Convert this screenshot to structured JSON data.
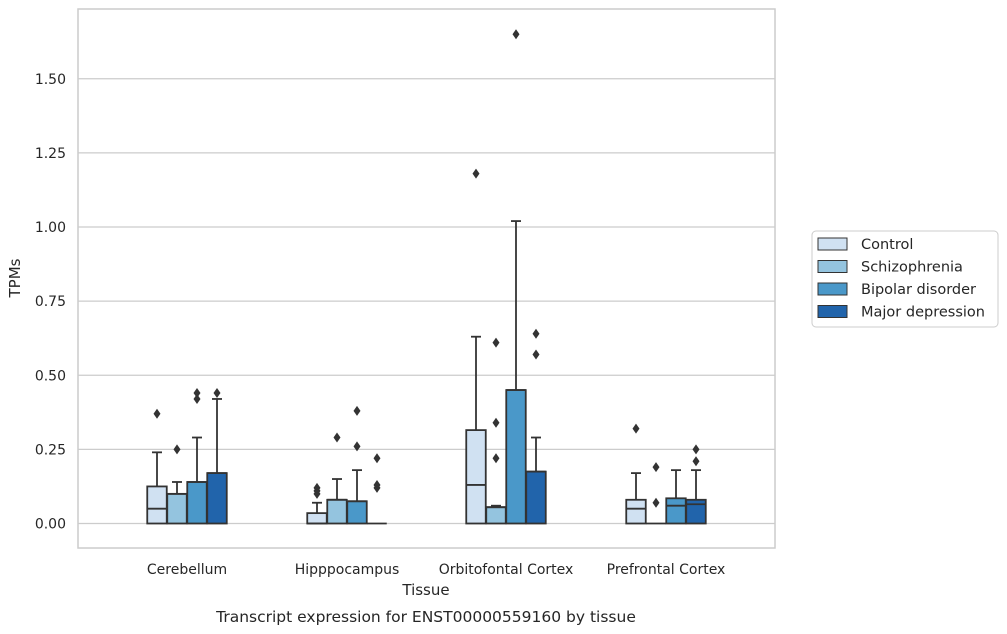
{
  "chart_data": {
    "type": "box",
    "title": "",
    "caption": "Transcript expression for ENST00000559160 by tissue",
    "xlabel": "Tissue",
    "ylabel": "TPMs",
    "ylim": [
      -0.08,
      1.73
    ],
    "yticks": [
      0.0,
      0.25,
      0.5,
      0.75,
      1.0,
      1.25,
      1.5
    ],
    "ytick_labels": [
      "0.00",
      "0.25",
      "0.50",
      "0.75",
      "1.00",
      "1.25",
      "1.50"
    ],
    "grid": "horizontal",
    "legend_position": "right",
    "categories": [
      "Cerebellum",
      "Hipppocampus",
      "Orbitofontal Cortex",
      "Prefrontal Cortex"
    ],
    "series": [
      {
        "name": "Control",
        "color": "#d0e1f2",
        "boxes": [
          {
            "q1": 0.0,
            "median": 0.05,
            "q3": 0.125,
            "whislo": 0.0,
            "whishi": 0.24,
            "fliers": [
              0.37
            ]
          },
          {
            "q1": 0.0,
            "median": 0.0,
            "q3": 0.035,
            "whislo": 0.0,
            "whishi": 0.07,
            "fliers": [
              0.1,
              0.11,
              0.12
            ]
          },
          {
            "q1": 0.0,
            "median": 0.13,
            "q3": 0.315,
            "whislo": 0.0,
            "whishi": 0.63,
            "fliers": [
              1.18
            ]
          },
          {
            "q1": 0.0,
            "median": 0.05,
            "q3": 0.08,
            "whislo": 0.0,
            "whishi": 0.17,
            "fliers": [
              0.32
            ]
          }
        ]
      },
      {
        "name": "Schizophrenia",
        "color": "#94c4df",
        "boxes": [
          {
            "q1": 0.0,
            "median": 0.1,
            "q3": 0.1,
            "whislo": 0.0,
            "whishi": 0.14,
            "fliers": [
              0.25
            ]
          },
          {
            "q1": 0.0,
            "median": 0.08,
            "q3": 0.08,
            "whislo": 0.0,
            "whishi": 0.15,
            "fliers": [
              0.29
            ]
          },
          {
            "q1": 0.0,
            "median": 0.055,
            "q3": 0.055,
            "whislo": 0.0,
            "whishi": 0.06,
            "fliers": [
              0.22,
              0.34,
              0.61
            ]
          },
          {
            "q1": 0.0,
            "median": 0.0,
            "q3": 0.0,
            "whislo": 0.0,
            "whishi": 0.0,
            "fliers": [
              0.07,
              0.19
            ]
          }
        ]
      },
      {
        "name": "Bipolar disorder",
        "color": "#4a98c9",
        "boxes": [
          {
            "q1": 0.0,
            "median": 0.14,
            "q3": 0.14,
            "whislo": 0.0,
            "whishi": 0.29,
            "fliers": [
              0.42,
              0.44
            ]
          },
          {
            "q1": 0.0,
            "median": 0.075,
            "q3": 0.075,
            "whislo": 0.0,
            "whishi": 0.18,
            "fliers": [
              0.26,
              0.38
            ]
          },
          {
            "q1": 0.0,
            "median": 0.45,
            "q3": 0.45,
            "whislo": 0.0,
            "whishi": 1.02,
            "fliers": [
              1.65
            ]
          },
          {
            "q1": 0.0,
            "median": 0.06,
            "q3": 0.085,
            "whislo": 0.0,
            "whishi": 0.18,
            "fliers": []
          }
        ]
      },
      {
        "name": "Major depression",
        "color": "#2164ab",
        "boxes": [
          {
            "q1": 0.0,
            "median": 0.17,
            "q3": 0.17,
            "whislo": 0.0,
            "whishi": 0.42,
            "fliers": [
              0.44
            ]
          },
          {
            "q1": 0.0,
            "median": 0.0,
            "q3": 0.0,
            "whislo": 0.0,
            "whishi": 0.0,
            "fliers": [
              0.12,
              0.13,
              0.22
            ]
          },
          {
            "q1": 0.0,
            "median": 0.175,
            "q3": 0.175,
            "whislo": 0.0,
            "whishi": 0.29,
            "fliers": [
              0.57,
              0.64
            ]
          },
          {
            "q1": 0.0,
            "median": 0.065,
            "q3": 0.08,
            "whislo": 0.0,
            "whishi": 0.18,
            "fliers": [
              0.21,
              0.25
            ]
          }
        ]
      }
    ]
  }
}
